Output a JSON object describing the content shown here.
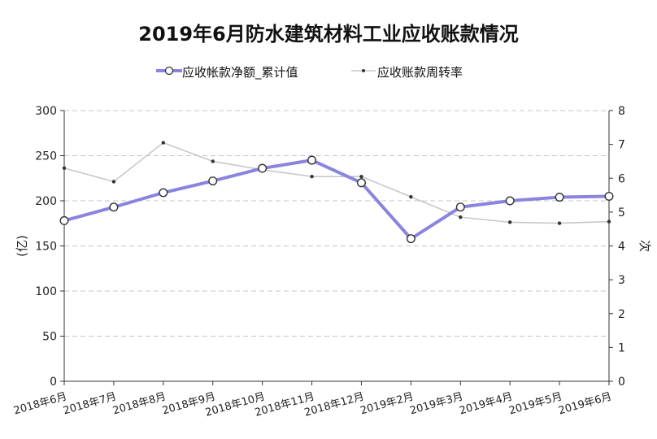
{
  "chart_data": {
    "type": "line",
    "title": "2019年6月防水建筑材料工业应收账款情况",
    "categories": [
      "2018年6月",
      "2018年7月",
      "2018年8月",
      "2018年9月",
      "2018年10月",
      "2018年11月",
      "2018年12月",
      "2019年2月",
      "2019年3月",
      "2019年4月",
      "2019年5月",
      "2019年6月"
    ],
    "ylabel": "(亿)",
    "y2label": "次",
    "ylim": [
      0,
      300
    ],
    "y2lim": [
      0,
      8
    ],
    "yticks": [
      "0",
      "50",
      "100",
      "150",
      "200",
      "250",
      "300"
    ],
    "y2ticks": [
      "0",
      "1",
      "2",
      "3",
      "4",
      "5",
      "6",
      "7",
      "8"
    ],
    "grid": true,
    "legend_position": "top",
    "series": [
      {
        "name": "应收帐款净额_累计值",
        "axis": "left",
        "color": "#8a84e0",
        "values": [
          178,
          193,
          209,
          222,
          236,
          245,
          220,
          158,
          193,
          200,
          204,
          205
        ]
      },
      {
        "name": "应收账款周转率",
        "axis": "right",
        "color": "#c8c8c8",
        "values": [
          6.3,
          5.9,
          7.05,
          6.5,
          6.25,
          6.05,
          6.05,
          5.45,
          4.85,
          4.7,
          4.67,
          4.72
        ]
      }
    ]
  }
}
